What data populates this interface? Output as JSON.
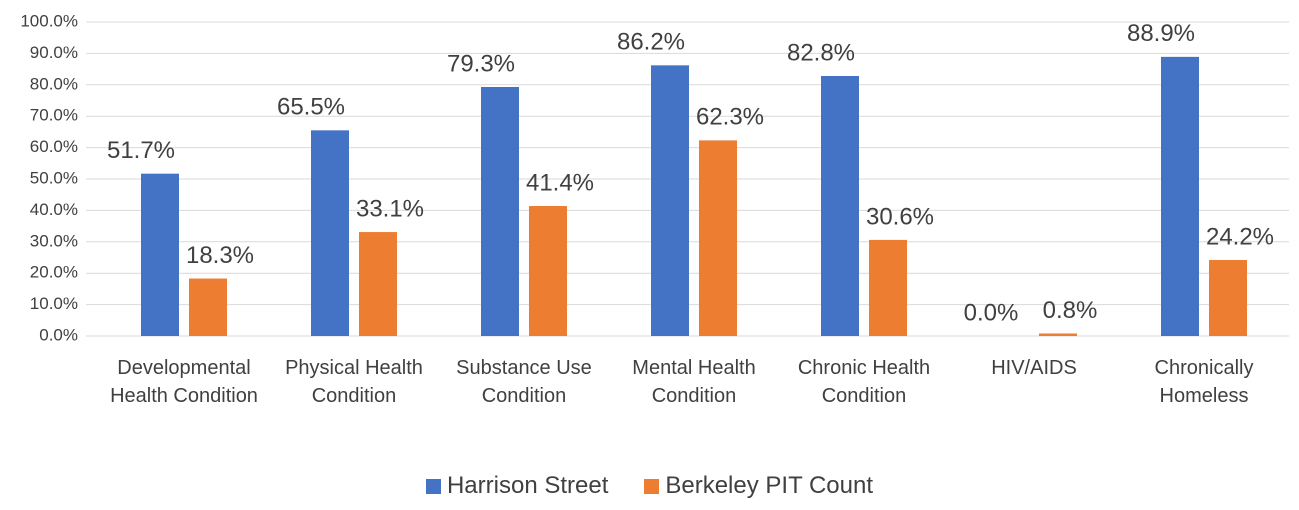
{
  "chart_data": {
    "type": "bar",
    "categories": [
      "Developmental Health Condition",
      "Physical Health Condition",
      "Substance Use Condition",
      "Mental Health Condition",
      "Chronic Health Condition",
      "HIV/AIDS",
      "Chronically Homeless"
    ],
    "series": [
      {
        "name": "Harrison Street",
        "color": "#4472c4",
        "values": [
          51.7,
          65.5,
          79.3,
          86.2,
          82.8,
          0.0,
          88.9
        ],
        "value_labels": [
          "51.7%",
          "65.5%",
          "79.3%",
          "86.2%",
          "82.8%",
          "0.0%",
          "88.9%"
        ]
      },
      {
        "name": "Berkeley PIT Count",
        "color": "#ed7d31",
        "values": [
          18.3,
          33.1,
          41.4,
          62.3,
          30.6,
          0.8,
          24.2
        ],
        "value_labels": [
          "18.3%",
          "33.1%",
          "41.4%",
          "62.3%",
          "30.6%",
          "0.8%",
          "24.2%"
        ]
      }
    ],
    "ylim": [
      0,
      100
    ],
    "yticks": [
      {
        "value": 0,
        "label": "0.0%"
      },
      {
        "value": 10,
        "label": "10.0%"
      },
      {
        "value": 20,
        "label": "20.0%"
      },
      {
        "value": 30,
        "label": "30.0%"
      },
      {
        "value": 40,
        "label": "40.0%"
      },
      {
        "value": 50,
        "label": "50.0%"
      },
      {
        "value": 60,
        "label": "60.0%"
      },
      {
        "value": 70,
        "label": "70.0%"
      },
      {
        "value": 80,
        "label": "80.0%"
      },
      {
        "value": 90,
        "label": "90.0%"
      },
      {
        "value": 100,
        "label": "100.0%"
      }
    ],
    "grid": true,
    "legend": "bottom"
  }
}
